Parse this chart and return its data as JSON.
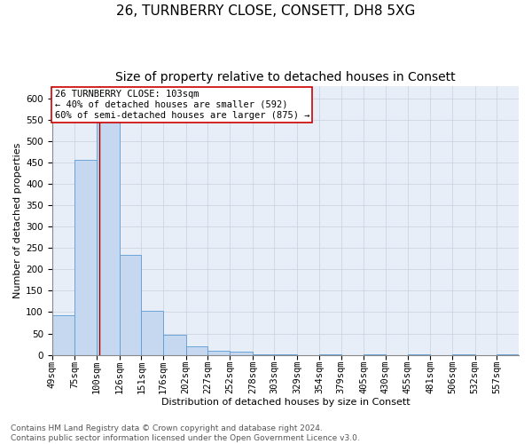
{
  "title_line1": "26, TURNBERRY CLOSE, CONSETT, DH8 5XG",
  "title_line2": "Size of property relative to detached houses in Consett",
  "xlabel": "Distribution of detached houses by size in Consett",
  "ylabel": "Number of detached properties",
  "bin_labels": [
    "49sqm",
    "75sqm",
    "100sqm",
    "126sqm",
    "151sqm",
    "176sqm",
    "202sqm",
    "227sqm",
    "252sqm",
    "278sqm",
    "303sqm",
    "329sqm",
    "354sqm",
    "379sqm",
    "405sqm",
    "430sqm",
    "455sqm",
    "481sqm",
    "506sqm",
    "532sqm",
    "557sqm"
  ],
  "bin_edges": [
    49,
    75,
    100,
    126,
    151,
    176,
    202,
    227,
    252,
    278,
    303,
    329,
    354,
    379,
    405,
    430,
    455,
    481,
    506,
    532,
    557,
    582
  ],
  "bar_values": [
    93,
    457,
    592,
    235,
    104,
    47,
    20,
    10,
    7,
    2,
    2,
    0,
    2,
    0,
    1,
    0,
    2,
    0,
    1,
    0,
    2
  ],
  "bar_color": "#c5d8f0",
  "bar_edge_color": "#5b9bd5",
  "vline_x": 103,
  "vline_color": "#990000",
  "annotation_line1": "26 TURNBERRY CLOSE: 103sqm",
  "annotation_line2": "← 40% of detached houses are smaller (592)",
  "annotation_line3": "60% of semi-detached houses are larger (875) →",
  "annotation_box_color": "white",
  "annotation_box_edge_color": "#cc0000",
  "ylim": [
    0,
    630
  ],
  "yticks": [
    0,
    50,
    100,
    150,
    200,
    250,
    300,
    350,
    400,
    450,
    500,
    550,
    600
  ],
  "footer_text": "Contains HM Land Registry data © Crown copyright and database right 2024.\nContains public sector information licensed under the Open Government Licence v3.0.",
  "bg_color": "#e8eef8",
  "grid_color": "#c8d0e0",
  "title_fontsize": 11,
  "subtitle_fontsize": 10,
  "axis_label_fontsize": 8,
  "tick_fontsize": 7.5,
  "annotation_fontsize": 7.5,
  "footer_fontsize": 6.5
}
